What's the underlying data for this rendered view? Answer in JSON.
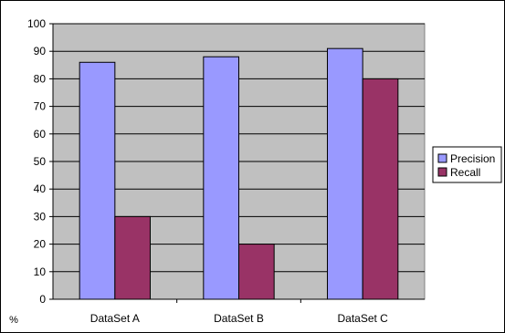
{
  "chart_data": {
    "type": "bar",
    "categories": [
      "DataSet A",
      "DataSet B",
      "DataSet C"
    ],
    "series": [
      {
        "name": "Precision",
        "values": [
          86,
          88,
          91
        ]
      },
      {
        "name": "Recall",
        "values": [
          30,
          20,
          80
        ]
      }
    ],
    "ylabel": "%",
    "ylim": [
      0,
      100
    ],
    "ytick_step": 10,
    "grid": true,
    "legend": "right",
    "colors": {
      "plot_background": "#c0c0c0",
      "grid": "#000000",
      "series": [
        "#9999ff",
        "#993366"
      ]
    }
  }
}
